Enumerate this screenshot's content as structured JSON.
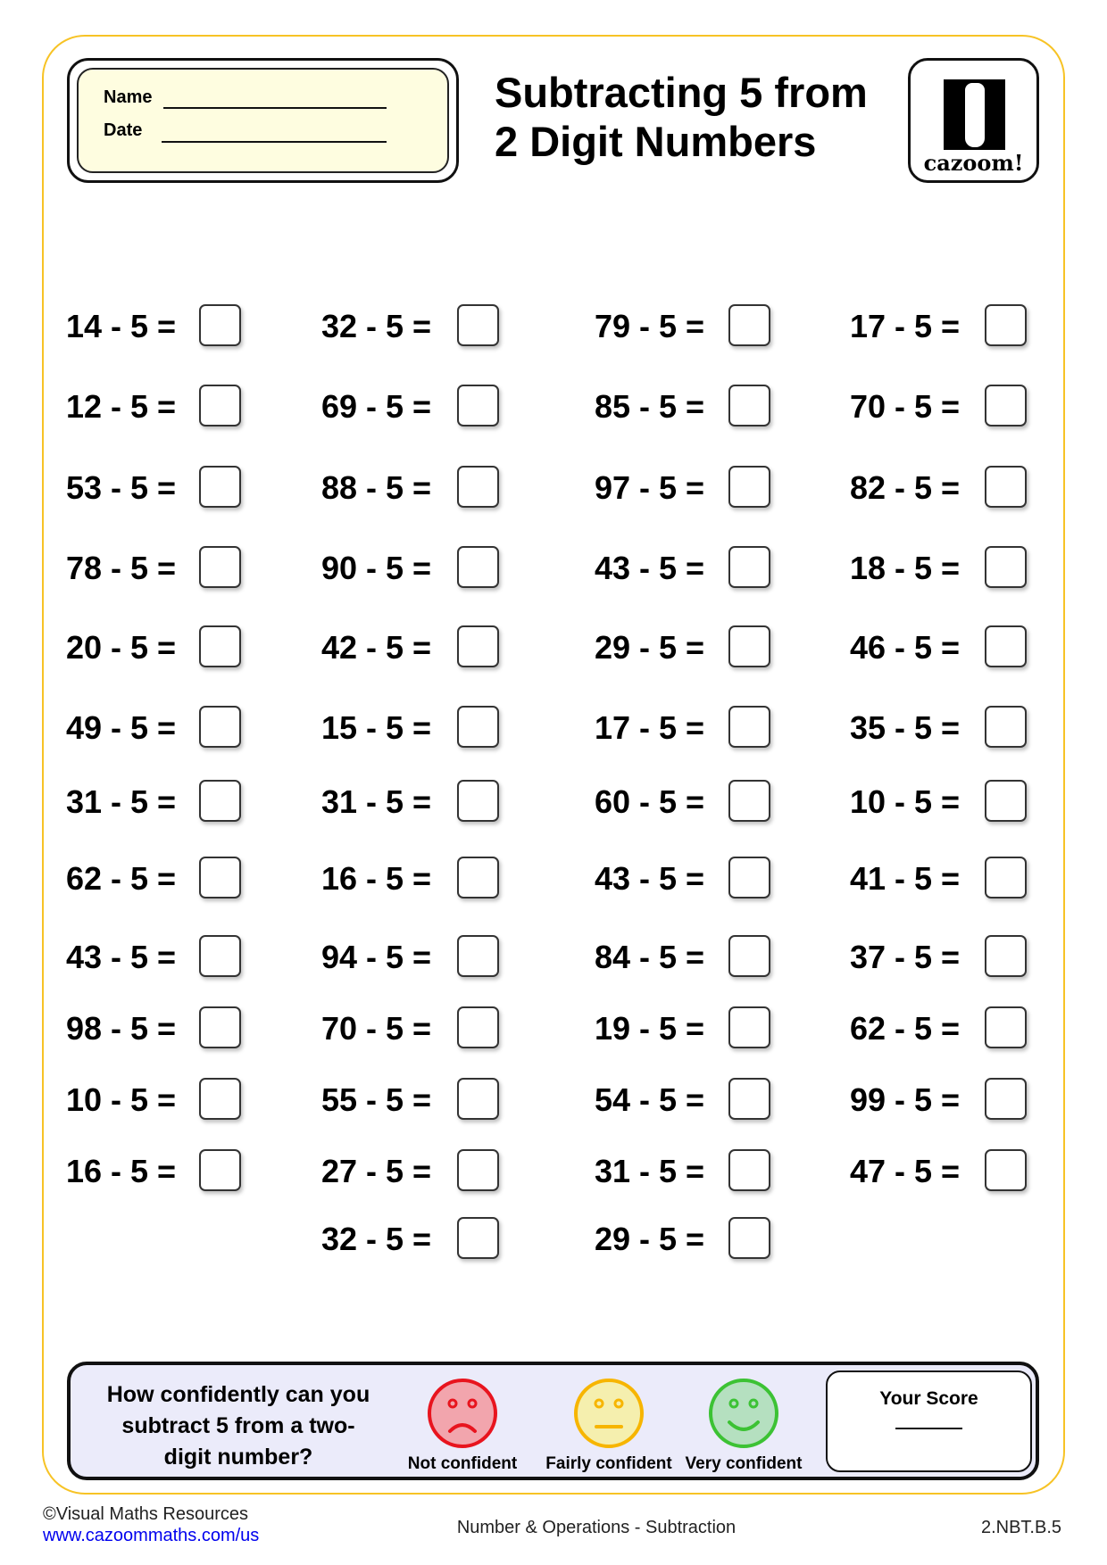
{
  "header": {
    "name_label": "Name",
    "date_label": "Date",
    "title_line1": "Subtracting 5 from",
    "title_line2": "2 Digit Numbers",
    "logo_text": "cazoom!"
  },
  "problems": {
    "subtrahend": 5,
    "columns": [
      [
        14,
        12,
        53,
        78,
        20,
        49,
        31,
        62,
        43,
        98,
        10,
        16
      ],
      [
        32,
        69,
        88,
        90,
        42,
        15,
        31,
        16,
        94,
        70,
        55,
        27,
        32
      ],
      [
        79,
        85,
        97,
        43,
        29,
        17,
        60,
        43,
        84,
        19,
        54,
        31,
        29
      ],
      [
        17,
        70,
        82,
        18,
        46,
        35,
        10,
        41,
        37,
        62,
        99,
        47
      ]
    ]
  },
  "confidence": {
    "question": "How confidently can you subtract 5 from a two-digit number?",
    "options": [
      {
        "label": "Not confident",
        "face": "sad-face-icon",
        "fill": "#f2a5ad",
        "stroke": "#e8141e"
      },
      {
        "label": "Fairly confident",
        "face": "neutral-face-icon",
        "fill": "#f5efae",
        "stroke": "#f7b500"
      },
      {
        "label": "Very confident",
        "face": "happy-face-icon",
        "fill": "#b5e0c0",
        "stroke": "#3cc234"
      }
    ],
    "score_label": "Your Score"
  },
  "footer": {
    "copyright": "©Visual Maths Resources",
    "link": "www.cazoommaths.com/us",
    "topic": "Number & Operations - Subtraction",
    "standard": "2.NBT.B.5"
  },
  "colors": {
    "frame": "#f7c325",
    "name_box": "#fefde0",
    "confidence_box": "#ebebfa",
    "link": "#0000ee"
  }
}
